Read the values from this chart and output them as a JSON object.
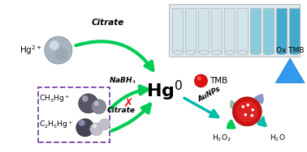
{
  "bg_color": "#ffffff",
  "hg2_label": "Hg$^{2+}$",
  "hg0_label": "Hg$^{0}$",
  "ch3hg_label": "CH$_3$Hg$^+$",
  "c2h5hg_label": "C$_2$H$_5$Hg$^+$",
  "citrate_label1": "Citrate",
  "nabh4_label": "NaBH$_4$",
  "citrate_label2": "Citrate",
  "aunps_label": "AuNPs",
  "tmb_label": "TMB",
  "ox_tmb_label": "Ox TMB",
  "h2o2_label": "H$_2$O$_2$",
  "h2o_label": "H$_2$O",
  "arrow_green": "#00cc55",
  "arrow_teal": "#00bbaa",
  "arrow_purple": "#8888bb",
  "box_color": "#7744aa",
  "x_color": "#ee1111",
  "sphere_gray": "#a0aab5",
  "sphere_highlight": "#d8e0e8",
  "red_sphere": "#dd1111",
  "blue_triangle": "#3399dd",
  "label_fs": 7.5,
  "small_fs": 6.5,
  "hg0_fs": 16
}
